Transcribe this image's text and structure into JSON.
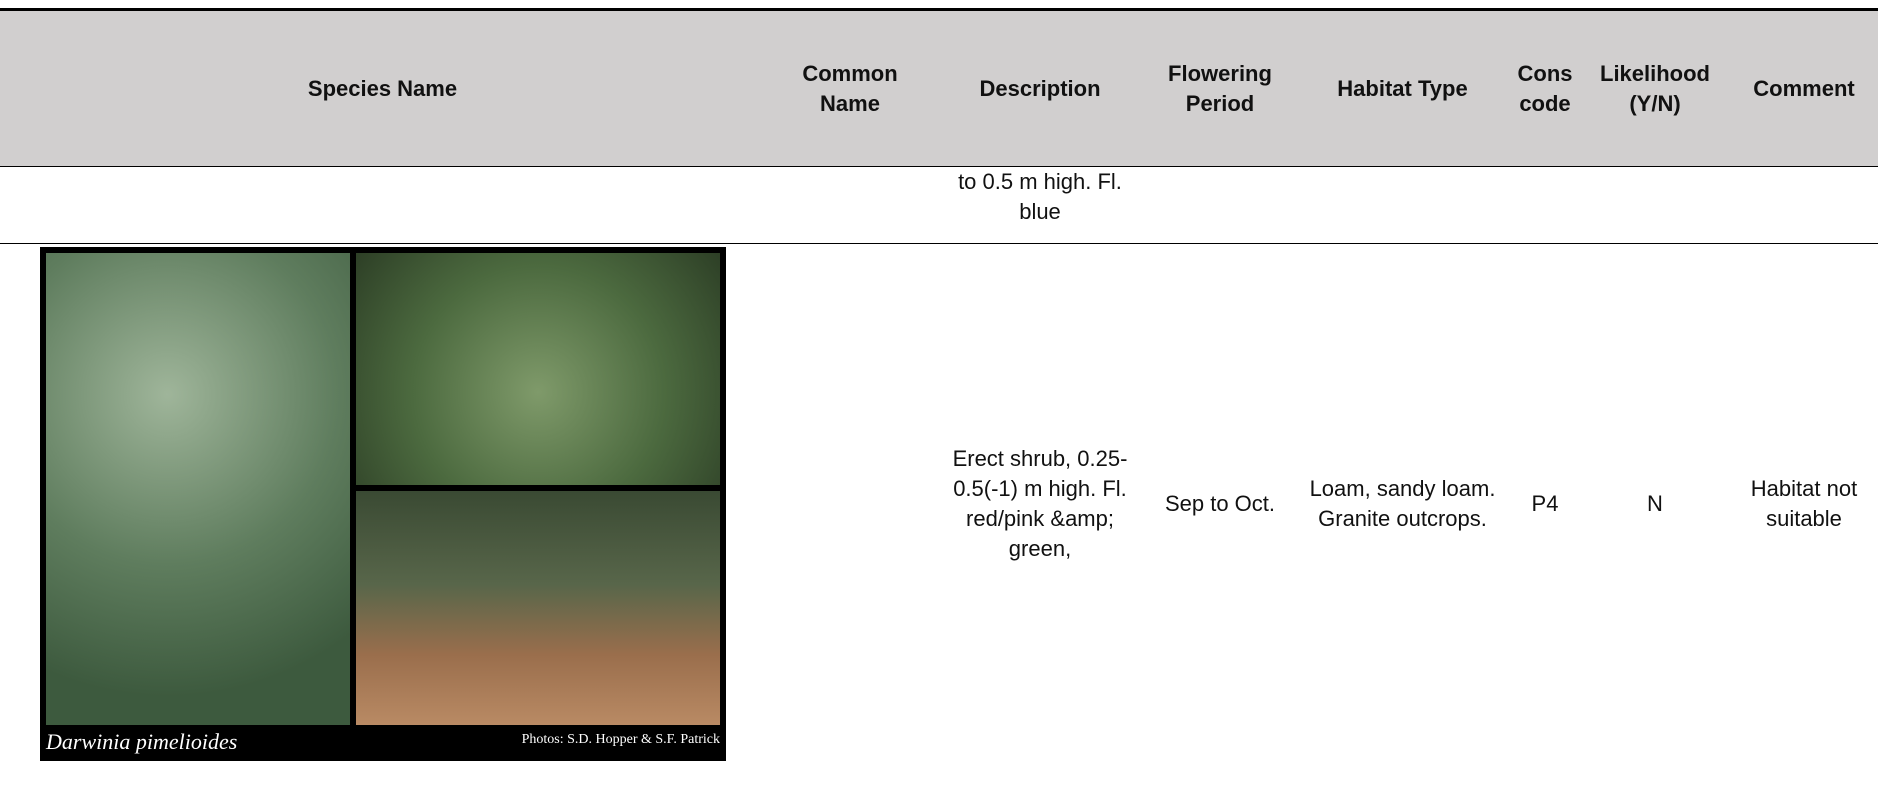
{
  "table": {
    "header": [
      "Species Name",
      "Common Name",
      "Description",
      "Flowering Period",
      "Habitat Type",
      "Cons code",
      "Likelihood (Y/N)",
      "Comment"
    ],
    "rows": [
      {
        "description": "to 0.5 m high. Fl. blue"
      },
      {
        "photo": {
          "caption": "Darwinia pimelioides",
          "credit": "Photos: S.D. Hopper & S.F. Patrick"
        },
        "description": "Erect shrub, 0.25-0.5(-1) m high. Fl. red/pink &amp; green,",
        "flowering_period": "Sep to Oct.",
        "habitat_type": "Loam, sandy loam. Granite outcrops.",
        "cons_code": "P4",
        "likelihood": "N",
        "comment": "Habitat not suitable"
      }
    ]
  }
}
